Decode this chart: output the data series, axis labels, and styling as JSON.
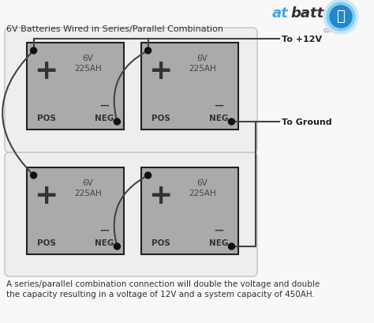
{
  "title": "6V Batteries Wired in Series/Parallel Combination",
  "bg_color": "#f8f8f8",
  "group_box_color": "#c8c8c8",
  "group_box_fill": "#eeeeee",
  "battery_fill": "#aaaaaa",
  "battery_edge": "#222222",
  "wire_color": "#444444",
  "dot_color": "#111111",
  "pos_text": "POS",
  "neg_text": "NEG",
  "voltage": "6V",
  "capacity": "225AH",
  "to_12v": "To +12V",
  "to_gnd": "To Ground",
  "footer_line1": "A series/parallel combination connection will double the voltage and double",
  "footer_line2": "the capacity resulting in a voltage of 12V and a system capacity of 450AH.",
  "logo_at_color": "#44aadd",
  "logo_batt_color": "#333333",
  "logo_com_color": "#888888"
}
